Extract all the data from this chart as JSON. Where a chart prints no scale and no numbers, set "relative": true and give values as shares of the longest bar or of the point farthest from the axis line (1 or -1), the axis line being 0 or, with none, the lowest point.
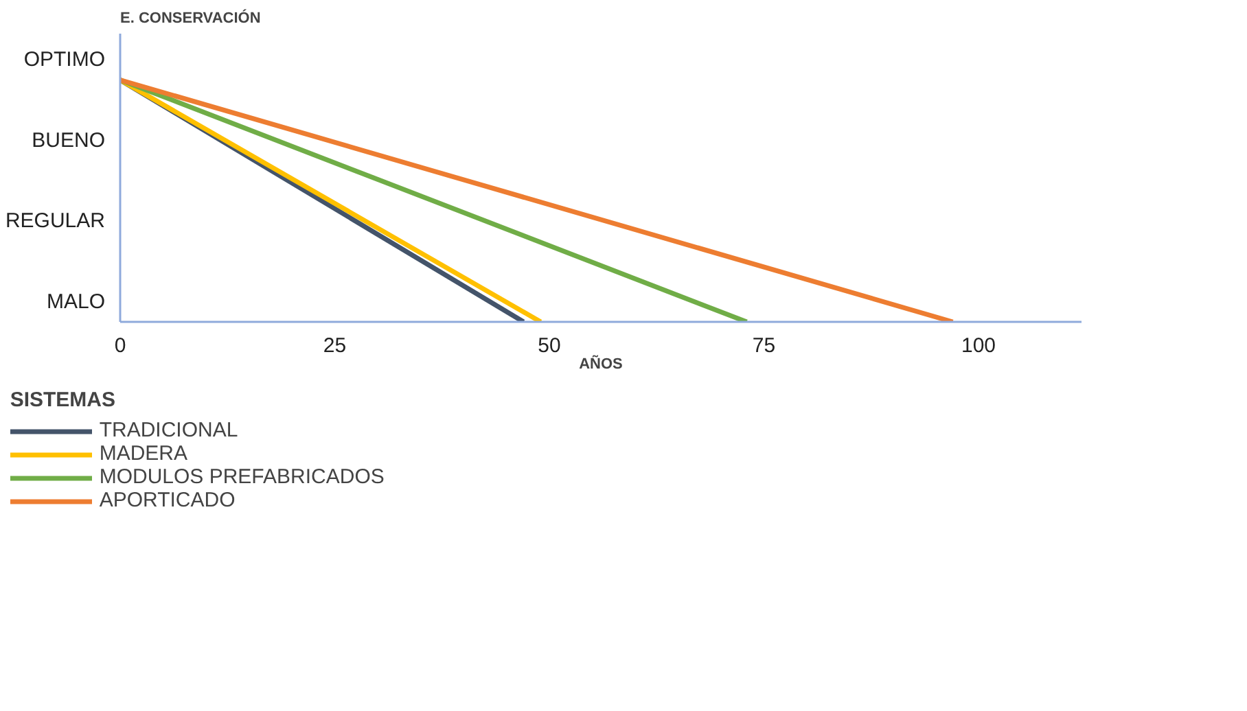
{
  "chart_data": {
    "type": "line",
    "relative": true,
    "ylabel": "E. CONSERVACIÓN",
    "xlabel": "AÑOS",
    "legend_title": "SISTEMAS",
    "xlim": [
      0,
      112
    ],
    "xticks": [
      0,
      25,
      50,
      75,
      100
    ],
    "annotations": [
      "MALO",
      "REGULAR",
      "BUENO",
      "OPTIMO"
    ],
    "grid": false,
    "legend": "bottom",
    "marker": "none",
    "line_style": "solid",
    "series": [
      {
        "name": "TRADICIONAL",
        "color": "#44546a",
        "x": [
          0,
          47
        ],
        "values": [
          1,
          0
        ]
      },
      {
        "name": "MADERA",
        "color": "#ffc000",
        "x": [
          0,
          49
        ],
        "values": [
          1,
          0
        ]
      },
      {
        "name": "MODULOS PREFABRICADOS",
        "color": "#70ad47",
        "x": [
          0,
          73
        ],
        "values": [
          1,
          0
        ]
      },
      {
        "name": "APORTICADO",
        "color": "#ed7d31",
        "x": [
          0,
          97
        ],
        "values": [
          1,
          0
        ]
      }
    ]
  }
}
